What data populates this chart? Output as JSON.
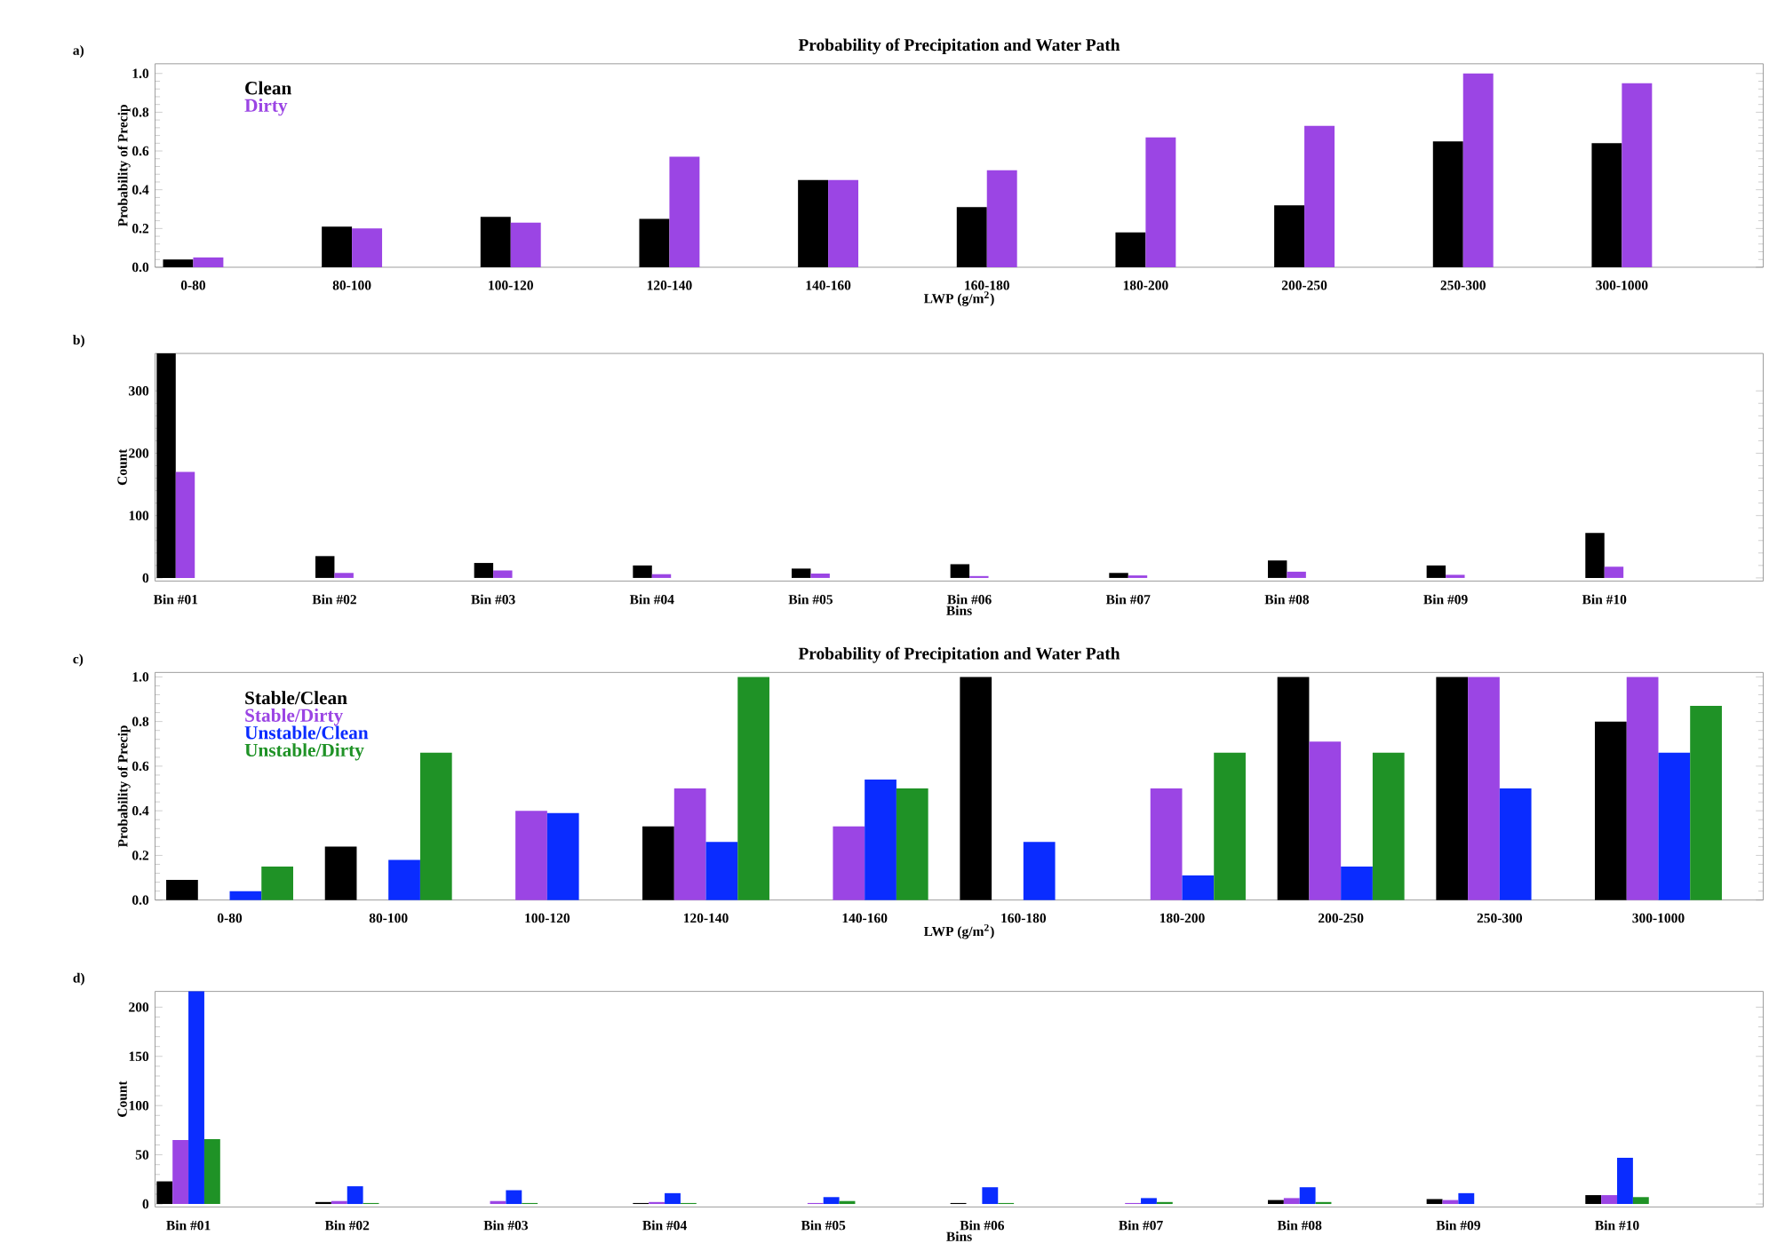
{
  "chart_data": [
    {
      "type": "bar",
      "title": "Probability of Precipitation and Water Path",
      "annotations": [
        "a)"
      ],
      "xlabel": "LWP (g/m$^{2}$)",
      "ylabel": "Probability of Precip",
      "legend": "top left",
      "categories": [
        "0-80",
        "80-100",
        "100-120",
        "120-140",
        "140-160",
        "160-180",
        "180-200",
        "200-250",
        "250-300",
        "300-1000"
      ],
      "ylim": [
        0,
        1.05
      ],
      "yticks": [
        {
          "value": 0,
          "label": "0.0"
        },
        {
          "value": 0.2,
          "label": "0.2"
        },
        {
          "value": 0.4,
          "label": "0.4"
        },
        {
          "value": 0.6,
          "label": "0.6"
        },
        {
          "value": 0.8,
          "label": "0.8"
        },
        {
          "value": 1,
          "label": "1.0"
        }
      ],
      "series": [
        {
          "name": "Clean",
          "color": "#000000",
          "values": [
            0.04,
            0.21,
            0.26,
            0.25,
            0.45,
            0.31,
            0.18,
            0.32,
            0.65,
            0.64
          ]
        },
        {
          "name": "Dirty",
          "color": "#9b45e4",
          "values": [
            0.05,
            0.2,
            0.23,
            0.57,
            0.45,
            0.5,
            0.67,
            0.73,
            1.0,
            0.95
          ]
        }
      ]
    },
    {
      "type": "bar",
      "annotations": [
        "b)"
      ],
      "xlabel": "Bins",
      "ylabel": "Count",
      "categories": [
        "Bin #01",
        "Bin #02",
        "Bin #03",
        "Bin #04",
        "Bin #05",
        "Bin #06",
        "Bin #07",
        "Bin #08",
        "Bin #09",
        "Bin #10"
      ],
      "ylim": [
        -5,
        360
      ],
      "yticks": [
        0,
        100,
        200,
        300
      ],
      "series": [
        {
          "color": "#000000",
          "values": [
            360,
            35,
            24,
            20,
            15,
            22,
            8,
            28,
            20,
            72
          ]
        },
        {
          "color": "#9b45e4",
          "values": [
            170,
            8,
            12,
            6,
            7,
            3,
            4,
            10,
            5,
            18
          ]
        }
      ]
    },
    {
      "type": "bar",
      "title": "Probability of Precipitation and Water Path",
      "annotations": [
        "c)"
      ],
      "xlabel": "LWP (g/m$^{2}$)",
      "ylabel": "Probability of Precip",
      "legend": "top left",
      "categories": [
        "0-80",
        "80-100",
        "100-120",
        "120-140",
        "140-160",
        "160-180",
        "180-200",
        "200-250",
        "250-300",
        "300-1000"
      ],
      "ylim": [
        0,
        1.02
      ],
      "yticks": [
        {
          "value": 0,
          "label": "0.0"
        },
        {
          "value": 0.2,
          "label": "0.2"
        },
        {
          "value": 0.4,
          "label": "0.4"
        },
        {
          "value": 0.6,
          "label": "0.6"
        },
        {
          "value": 0.8,
          "label": "0.8"
        },
        {
          "value": 1,
          "label": "1.0"
        }
      ],
      "series": [
        {
          "name": "Stable/Clean",
          "color": "#000000",
          "values": [
            0.09,
            0.24,
            0,
            0.33,
            0,
            1.0,
            0,
            1.0,
            1.0,
            0.8
          ]
        },
        {
          "name": "Stable/Dirty",
          "color": "#9b45e4",
          "values": [
            0,
            0,
            0.4,
            0.5,
            0.33,
            0,
            0.5,
            0.71,
            1.0,
            1.0
          ]
        },
        {
          "name": "Unstable/Clean",
          "color": "#0a2cff",
          "values": [
            0.04,
            0.18,
            0.39,
            0.26,
            0.54,
            0.26,
            0.11,
            0.15,
            0.5,
            0.66
          ]
        },
        {
          "name": "Unstable/Dirty",
          "color": "#1f9226",
          "values": [
            0.15,
            0.66,
            0,
            1.0,
            0.5,
            0,
            0.66,
            0.66,
            0,
            0.87
          ]
        }
      ]
    },
    {
      "type": "bar",
      "annotations": [
        "d)"
      ],
      "xlabel": "Bins",
      "ylabel": "Count",
      "categories": [
        "Bin #01",
        "Bin #02",
        "Bin #03",
        "Bin #04",
        "Bin #05",
        "Bin #06",
        "Bin #07",
        "Bin #08",
        "Bin #09",
        "Bin #10"
      ],
      "ylim": [
        -3,
        216
      ],
      "yticks": [
        0,
        50,
        100,
        150,
        200
      ],
      "series": [
        {
          "color": "#000000",
          "values": [
            23,
            2,
            0,
            1,
            0,
            1,
            0,
            4,
            5,
            9
          ]
        },
        {
          "color": "#9b45e4",
          "values": [
            65,
            3,
            3,
            2,
            1,
            0,
            1,
            6,
            4,
            9
          ]
        },
        {
          "color": "#0a2cff",
          "values": [
            216,
            18,
            14,
            11,
            7,
            17,
            6,
            17,
            11,
            47
          ]
        },
        {
          "color": "#1f9226",
          "values": [
            66,
            1,
            1,
            1,
            3,
            1,
            2,
            2,
            0,
            7
          ]
        }
      ]
    }
  ]
}
